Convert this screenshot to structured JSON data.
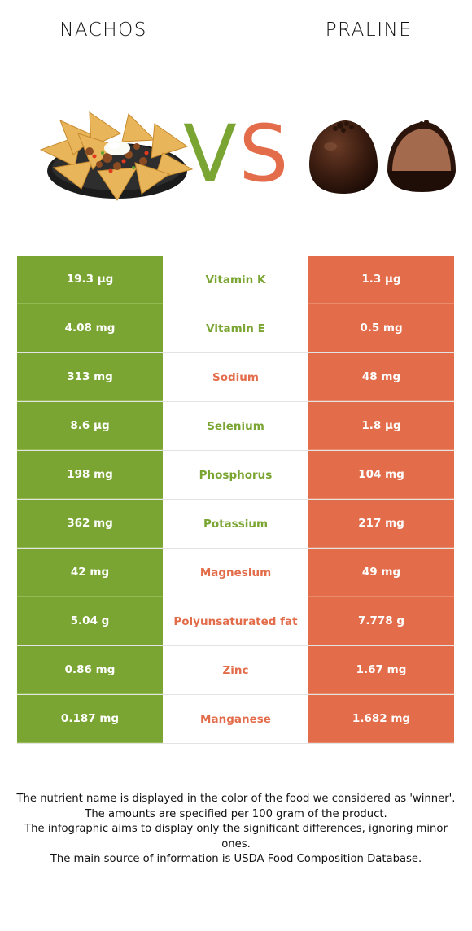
{
  "header": {
    "left_food": "NACHOS",
    "right_food": "PRALINE",
    "vs_left": "V",
    "vs_right": "S"
  },
  "colors": {
    "left": "#7aa532",
    "right": "#e36d4b"
  },
  "icons": {
    "left_image": "nachos-plate-icon",
    "right_image": "praline-chocolate-icon"
  },
  "rows": [
    {
      "left": "19.3 µg",
      "nutrient": "Vitamin K",
      "right": "1.3 µg",
      "winner": "left"
    },
    {
      "left": "4.08 mg",
      "nutrient": "Vitamin E",
      "right": "0.5 mg",
      "winner": "left"
    },
    {
      "left": "313 mg",
      "nutrient": "Sodium",
      "right": "48 mg",
      "winner": "right"
    },
    {
      "left": "8.6 µg",
      "nutrient": "Selenium",
      "right": "1.8 µg",
      "winner": "left"
    },
    {
      "left": "198 mg",
      "nutrient": "Phosphorus",
      "right": "104 mg",
      "winner": "left"
    },
    {
      "left": "362 mg",
      "nutrient": "Potassium",
      "right": "217 mg",
      "winner": "left"
    },
    {
      "left": "42 mg",
      "nutrient": "Magnesium",
      "right": "49 mg",
      "winner": "right"
    },
    {
      "left": "5.04 g",
      "nutrient": "Polyunsaturated fat",
      "right": "7.778 g",
      "winner": "right"
    },
    {
      "left": "0.86 mg",
      "nutrient": "Zinc",
      "right": "1.67 mg",
      "winner": "right"
    },
    {
      "left": "0.187 mg",
      "nutrient": "Manganese",
      "right": "1.682 mg",
      "winner": "right"
    }
  ],
  "footer": {
    "line1": "The nutrient name is displayed in the color of the food we considered as 'winner'.",
    "line2": "The amounts are specified per 100 gram of the product.",
    "line3": "The infographic aims to display only the significant differences, ignoring minor ones.",
    "line4": "The main source of information is USDA Food Composition Database."
  }
}
